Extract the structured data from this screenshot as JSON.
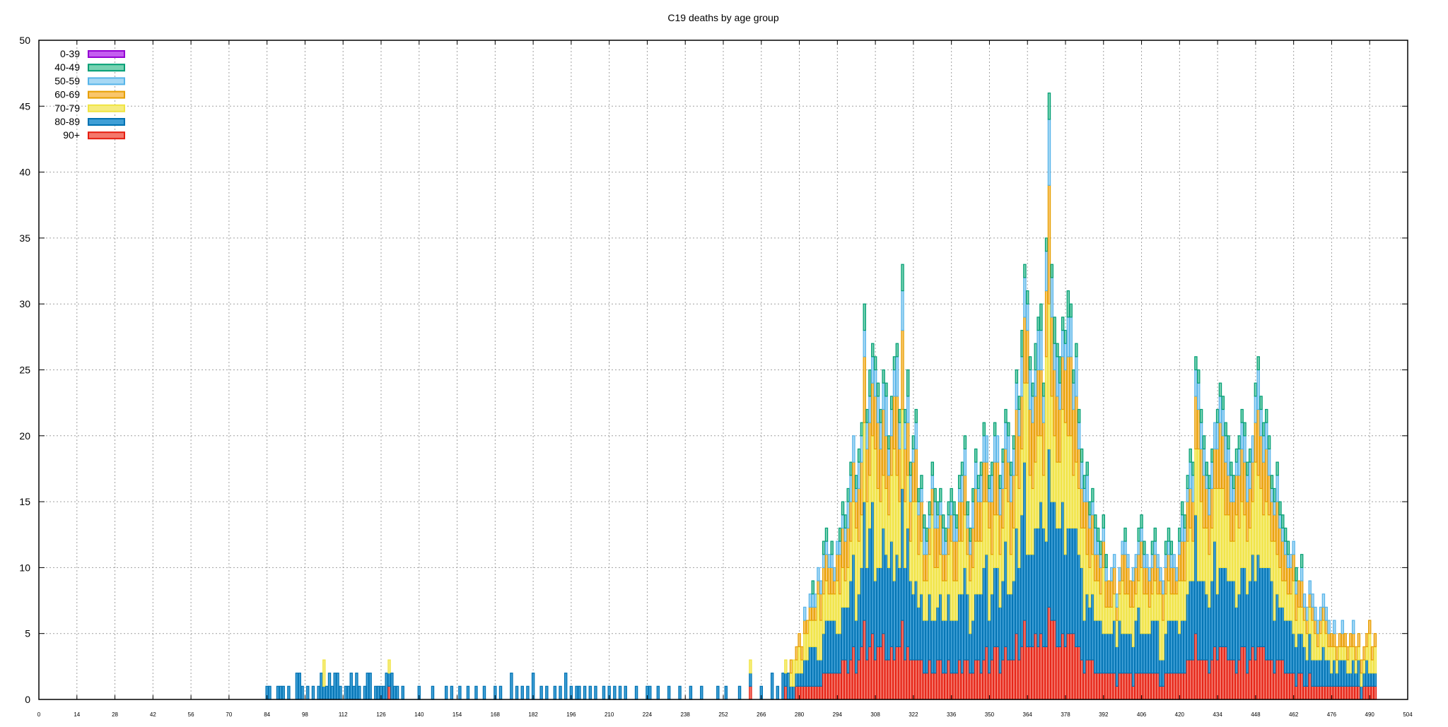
{
  "chart_data": {
    "type": "bar",
    "stacked": true,
    "title": "C19 deaths by age group",
    "xlabel": "",
    "ylabel": "",
    "xlim": [
      0,
      504
    ],
    "ylim": [
      0,
      50
    ],
    "x_ticks": [
      0,
      14,
      28,
      42,
      56,
      70,
      84,
      98,
      112,
      126,
      140,
      154,
      168,
      182,
      196,
      210,
      224,
      238,
      252,
      266,
      280,
      294,
      308,
      322,
      336,
      350,
      364,
      378,
      392,
      406,
      420,
      434,
      448,
      462,
      476,
      490,
      504
    ],
    "y_ticks": [
      0,
      5,
      10,
      15,
      20,
      25,
      30,
      35,
      40,
      45,
      50
    ],
    "grid": true,
    "legend_position": "top-left",
    "series": [
      {
        "name": "0-39",
        "color": "#c45ef0",
        "border": "#9400d3"
      },
      {
        "name": "40-49",
        "color": "#77d2b2",
        "border": "#009e73"
      },
      {
        "name": "50-59",
        "color": "#a6d8f4",
        "border": "#56b4e9"
      },
      {
        "name": "60-69",
        "color": "#f9c66b",
        "border": "#e69f00"
      },
      {
        "name": "70-79",
        "color": "#f6ec7e",
        "border": "#f0e442"
      },
      {
        "name": "80-89",
        "color": "#3f9fd6",
        "border": "#0072b2"
      },
      {
        "name": "90+",
        "color": "#f4786c",
        "border": "#e51e10"
      }
    ],
    "totals_note": "Stacked daily totals read approximately from the plot (x = day index).",
    "totals": [
      [
        84,
        1
      ],
      [
        85,
        1
      ],
      [
        88,
        1
      ],
      [
        89,
        1
      ],
      [
        90,
        1
      ],
      [
        92,
        1
      ],
      [
        95,
        2
      ],
      [
        96,
        2
      ],
      [
        97,
        1
      ],
      [
        99,
        1
      ],
      [
        101,
        1
      ],
      [
        103,
        1
      ],
      [
        104,
        2
      ],
      [
        105,
        3
      ],
      [
        106,
        1
      ],
      [
        107,
        2
      ],
      [
        108,
        1
      ],
      [
        109,
        2
      ],
      [
        110,
        2
      ],
      [
        111,
        1
      ],
      [
        113,
        1
      ],
      [
        114,
        1
      ],
      [
        115,
        2
      ],
      [
        116,
        1
      ],
      [
        117,
        2
      ],
      [
        118,
        1
      ],
      [
        120,
        1
      ],
      [
        121,
        2
      ],
      [
        122,
        2
      ],
      [
        124,
        1
      ],
      [
        125,
        1
      ],
      [
        126,
        1
      ],
      [
        127,
        1
      ],
      [
        128,
        2
      ],
      [
        129,
        3
      ],
      [
        130,
        2
      ],
      [
        131,
        1
      ],
      [
        132,
        1
      ],
      [
        134,
        1
      ],
      [
        140,
        1
      ],
      [
        145,
        1
      ],
      [
        150,
        1
      ],
      [
        152,
        1
      ],
      [
        155,
        1
      ],
      [
        158,
        1
      ],
      [
        161,
        1
      ],
      [
        164,
        1
      ],
      [
        168,
        1
      ],
      [
        170,
        1
      ],
      [
        174,
        2
      ],
      [
        176,
        1
      ],
      [
        178,
        1
      ],
      [
        180,
        1
      ],
      [
        182,
        2
      ],
      [
        185,
        1
      ],
      [
        187,
        1
      ],
      [
        190,
        1
      ],
      [
        192,
        1
      ],
      [
        194,
        2
      ],
      [
        196,
        1
      ],
      [
        198,
        1
      ],
      [
        199,
        1
      ],
      [
        201,
        1
      ],
      [
        203,
        1
      ],
      [
        205,
        1
      ],
      [
        208,
        1
      ],
      [
        210,
        1
      ],
      [
        212,
        1
      ],
      [
        214,
        1
      ],
      [
        216,
        1
      ],
      [
        220,
        1
      ],
      [
        224,
        1
      ],
      [
        225,
        1
      ],
      [
        228,
        1
      ],
      [
        232,
        1
      ],
      [
        236,
        1
      ],
      [
        240,
        1
      ],
      [
        244,
        1
      ],
      [
        250,
        1
      ],
      [
        253,
        1
      ],
      [
        258,
        1
      ],
      [
        262,
        3
      ],
      [
        266,
        1
      ],
      [
        270,
        2
      ],
      [
        272,
        1
      ],
      [
        274,
        2
      ],
      [
        275,
        3
      ],
      [
        276,
        2
      ],
      [
        277,
        3
      ],
      [
        278,
        3
      ],
      [
        279,
        4
      ],
      [
        280,
        5
      ],
      [
        281,
        4
      ],
      [
        282,
        7
      ],
      [
        283,
        6
      ],
      [
        284,
        8
      ],
      [
        285,
        9
      ],
      [
        286,
        8
      ],
      [
        287,
        10
      ],
      [
        288,
        9
      ],
      [
        289,
        12
      ],
      [
        290,
        13
      ],
      [
        291,
        11
      ],
      [
        292,
        12
      ],
      [
        293,
        10
      ],
      [
        294,
        12
      ],
      [
        295,
        13
      ],
      [
        296,
        15
      ],
      [
        297,
        14
      ],
      [
        298,
        16
      ],
      [
        299,
        18
      ],
      [
        300,
        20
      ],
      [
        301,
        17
      ],
      [
        302,
        19
      ],
      [
        303,
        21
      ],
      [
        304,
        30
      ],
      [
        305,
        22
      ],
      [
        306,
        25
      ],
      [
        307,
        27
      ],
      [
        308,
        26
      ],
      [
        309,
        24
      ],
      [
        310,
        22
      ],
      [
        311,
        25
      ],
      [
        312,
        24
      ],
      [
        313,
        20
      ],
      [
        314,
        23
      ],
      [
        315,
        26
      ],
      [
        316,
        27
      ],
      [
        317,
        22
      ],
      [
        318,
        33
      ],
      [
        319,
        22
      ],
      [
        320,
        25
      ],
      [
        321,
        18
      ],
      [
        322,
        20
      ],
      [
        323,
        22
      ],
      [
        324,
        16
      ],
      [
        325,
        17
      ],
      [
        326,
        14
      ],
      [
        327,
        13
      ],
      [
        328,
        15
      ],
      [
        329,
        18
      ],
      [
        330,
        16
      ],
      [
        331,
        15
      ],
      [
        332,
        16
      ],
      [
        333,
        14
      ],
      [
        334,
        13
      ],
      [
        335,
        15
      ],
      [
        336,
        16
      ],
      [
        337,
        15
      ],
      [
        338,
        14
      ],
      [
        339,
        17
      ],
      [
        340,
        18
      ],
      [
        341,
        20
      ],
      [
        342,
        15
      ],
      [
        343,
        13
      ],
      [
        344,
        16
      ],
      [
        345,
        19
      ],
      [
        346,
        17
      ],
      [
        347,
        18
      ],
      [
        348,
        21
      ],
      [
        349,
        20
      ],
      [
        350,
        17
      ],
      [
        351,
        18
      ],
      [
        352,
        21
      ],
      [
        353,
        20
      ],
      [
        354,
        17
      ],
      [
        355,
        19
      ],
      [
        356,
        22
      ],
      [
        357,
        21
      ],
      [
        358,
        18
      ],
      [
        359,
        20
      ],
      [
        360,
        25
      ],
      [
        361,
        23
      ],
      [
        362,
        28
      ],
      [
        363,
        33
      ],
      [
        364,
        31
      ],
      [
        365,
        26
      ],
      [
        366,
        24
      ],
      [
        367,
        27
      ],
      [
        368,
        29
      ],
      [
        369,
        30
      ],
      [
        370,
        24
      ],
      [
        371,
        35
      ],
      [
        372,
        46
      ],
      [
        373,
        33
      ],
      [
        374,
        29
      ],
      [
        375,
        27
      ],
      [
        376,
        26
      ],
      [
        377,
        29
      ],
      [
        378,
        28
      ],
      [
        379,
        31
      ],
      [
        380,
        30
      ],
      [
        381,
        25
      ],
      [
        382,
        27
      ],
      [
        383,
        22
      ],
      [
        384,
        19
      ],
      [
        385,
        17
      ],
      [
        386,
        18
      ],
      [
        387,
        15
      ],
      [
        388,
        16
      ],
      [
        389,
        14
      ],
      [
        390,
        13
      ],
      [
        391,
        12
      ],
      [
        392,
        14
      ],
      [
        393,
        11
      ],
      [
        394,
        9
      ],
      [
        395,
        10
      ],
      [
        396,
        11
      ],
      [
        397,
        8
      ],
      [
        398,
        10
      ],
      [
        399,
        12
      ],
      [
        400,
        13
      ],
      [
        401,
        11
      ],
      [
        402,
        9
      ],
      [
        403,
        10
      ],
      [
        404,
        11
      ],
      [
        405,
        13
      ],
      [
        406,
        14
      ],
      [
        407,
        12
      ],
      [
        408,
        11
      ],
      [
        409,
        10
      ],
      [
        410,
        12
      ],
      [
        411,
        13
      ],
      [
        412,
        11
      ],
      [
        413,
        10
      ],
      [
        414,
        9
      ],
      [
        415,
        12
      ],
      [
        416,
        13
      ],
      [
        417,
        12
      ],
      [
        418,
        11
      ],
      [
        419,
        10
      ],
      [
        420,
        13
      ],
      [
        421,
        15
      ],
      [
        422,
        14
      ],
      [
        423,
        17
      ],
      [
        424,
        19
      ],
      [
        425,
        18
      ],
      [
        426,
        26
      ],
      [
        427,
        25
      ],
      [
        428,
        22
      ],
      [
        429,
        20
      ],
      [
        430,
        18
      ],
      [
        431,
        17
      ],
      [
        432,
        19
      ],
      [
        433,
        21
      ],
      [
        434,
        22
      ],
      [
        435,
        24
      ],
      [
        436,
        23
      ],
      [
        437,
        21
      ],
      [
        438,
        20
      ],
      [
        439,
        18
      ],
      [
        440,
        17
      ],
      [
        441,
        19
      ],
      [
        442,
        20
      ],
      [
        443,
        22
      ],
      [
        444,
        21
      ],
      [
        445,
        18
      ],
      [
        446,
        19
      ],
      [
        447,
        20
      ],
      [
        448,
        24
      ],
      [
        449,
        26
      ],
      [
        450,
        23
      ],
      [
        451,
        21
      ],
      [
        452,
        22
      ],
      [
        453,
        20
      ],
      [
        454,
        17
      ],
      [
        455,
        16
      ],
      [
        456,
        18
      ],
      [
        457,
        15
      ],
      [
        458,
        14
      ],
      [
        459,
        13
      ],
      [
        460,
        12
      ],
      [
        461,
        11
      ],
      [
        462,
        12
      ],
      [
        463,
        10
      ],
      [
        464,
        9
      ],
      [
        465,
        11
      ],
      [
        466,
        8
      ],
      [
        467,
        7
      ],
      [
        468,
        9
      ],
      [
        469,
        8
      ],
      [
        470,
        7
      ],
      [
        471,
        6
      ],
      [
        472,
        7
      ],
      [
        473,
        8
      ],
      [
        474,
        7
      ],
      [
        475,
        6
      ],
      [
        476,
        5
      ],
      [
        477,
        6
      ],
      [
        478,
        4
      ],
      [
        479,
        5
      ],
      [
        480,
        6
      ],
      [
        481,
        5
      ],
      [
        482,
        4
      ],
      [
        483,
        5
      ],
      [
        484,
        6
      ],
      [
        485,
        4
      ],
      [
        486,
        5
      ],
      [
        487,
        3
      ],
      [
        488,
        4
      ],
      [
        489,
        5
      ],
      [
        490,
        6
      ],
      [
        491,
        4
      ],
      [
        492,
        5
      ]
    ]
  }
}
